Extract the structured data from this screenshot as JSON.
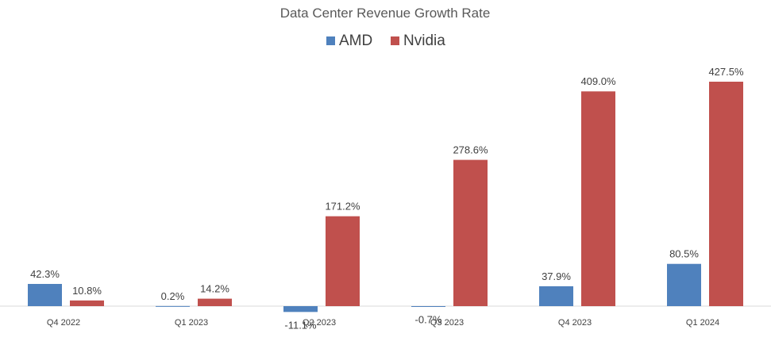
{
  "chart_data": {
    "type": "bar",
    "title": "Data Center Revenue Growth Rate",
    "xlabel": "",
    "ylabel": "",
    "ylim": [
      -20,
      450
    ],
    "grid": false,
    "legend_position": "top-center",
    "categories": [
      "Q4 2022",
      "Q1 2023",
      "Q2 2023",
      "Q3 2023",
      "Q4 2023",
      "Q1 2024"
    ],
    "series": [
      {
        "name": "AMD",
        "color": "#4F81BD",
        "values": [
          42.3,
          0.2,
          -11.1,
          -0.7,
          37.9,
          80.5
        ],
        "labels": [
          "42.3%",
          "0.2%",
          "-11.1%",
          "-0.7%",
          "37.9%",
          "80.5%"
        ]
      },
      {
        "name": "Nvidia",
        "color": "#C0504D",
        "values": [
          10.8,
          14.2,
          171.2,
          278.6,
          409.0,
          427.5
        ],
        "labels": [
          "10.8%",
          "14.2%",
          "171.2%",
          "278.6%",
          "409.0%",
          "427.5%"
        ]
      }
    ]
  }
}
